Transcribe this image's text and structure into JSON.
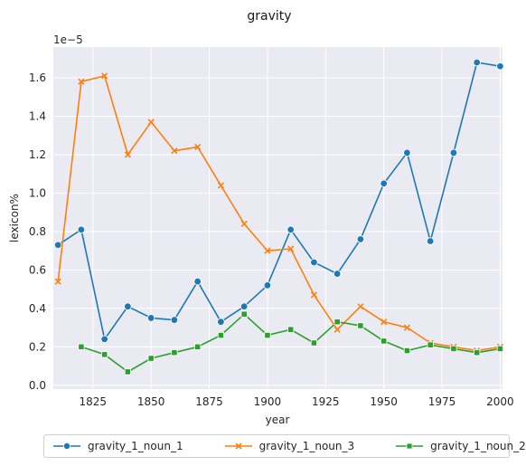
{
  "chart_data": {
    "type": "line",
    "title": "gravity",
    "xlabel": "year",
    "ylabel": "lexicon%",
    "offset_label": "1e−5",
    "xlim": [
      1808,
      2001
    ],
    "ylim": [
      -0.02,
      1.76
    ],
    "xticks": [
      1825,
      1850,
      1875,
      1900,
      1925,
      1950,
      1975,
      2000
    ],
    "yticks": [
      0.0,
      0.2,
      0.4,
      0.6,
      0.8,
      1.0,
      1.2,
      1.4,
      1.6
    ],
    "ytick_labels": [
      "0.0",
      "0.2",
      "0.4",
      "0.6",
      "0.8",
      "1.0",
      "1.2",
      "1.4",
      "1.6"
    ],
    "grid": true,
    "legend_position": "bottom",
    "series": [
      {
        "name": "gravity_1_noun_1",
        "color": "#1f77b4",
        "marker": "circle",
        "x": [
          1810,
          1820,
          1830,
          1840,
          1850,
          1860,
          1870,
          1880,
          1890,
          1900,
          1910,
          1920,
          1930,
          1940,
          1950,
          1960,
          1970,
          1980,
          1990,
          2000
        ],
        "values": [
          0.73,
          0.81,
          0.24,
          0.41,
          0.35,
          0.34,
          0.54,
          0.33,
          0.41,
          0.52,
          0.81,
          0.64,
          0.58,
          0.76,
          1.05,
          1.21,
          0.75,
          1.21,
          1.68,
          1.66
        ]
      },
      {
        "name": "gravity_1_noun_3",
        "color": "#ff7f0e",
        "marker": "x",
        "x": [
          1810,
          1820,
          1830,
          1840,
          1850,
          1860,
          1870,
          1880,
          1890,
          1900,
          1910,
          1920,
          1930,
          1940,
          1950,
          1960,
          1970,
          1980,
          1990,
          2000
        ],
        "values": [
          0.54,
          1.58,
          1.61,
          1.2,
          1.37,
          1.22,
          1.24,
          1.04,
          0.84,
          0.7,
          0.71,
          0.47,
          0.29,
          0.41,
          0.33,
          0.3,
          0.22,
          0.2,
          0.18,
          0.2
        ]
      },
      {
        "name": "gravity_1_noun_2",
        "color": "#2ca02c",
        "marker": "square",
        "x": [
          1820,
          1830,
          1840,
          1850,
          1860,
          1870,
          1880,
          1890,
          1900,
          1910,
          1920,
          1930,
          1940,
          1950,
          1960,
          1970,
          1980,
          1990,
          2000
        ],
        "values": [
          0.2,
          0.16,
          0.07,
          0.14,
          0.17,
          0.2,
          0.26,
          0.37,
          0.26,
          0.29,
          0.22,
          0.33,
          0.31,
          0.23,
          0.18,
          0.21,
          0.19,
          0.17,
          0.19
        ]
      }
    ]
  }
}
